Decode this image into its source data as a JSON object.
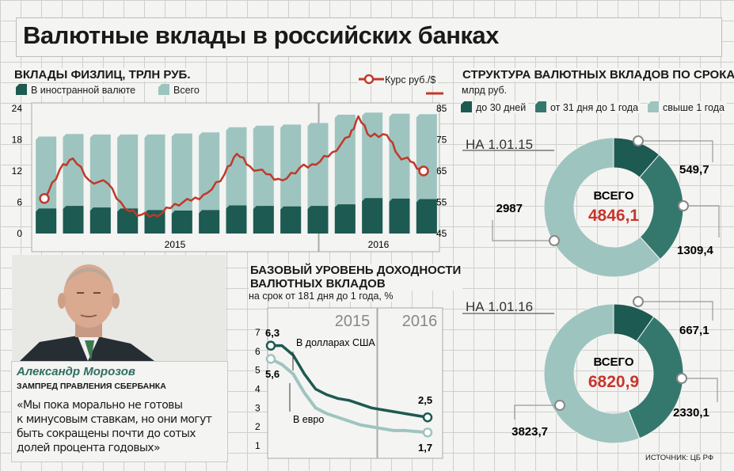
{
  "title": "Валютные вклады в российских банках",
  "colors": {
    "dark": "#1d5a51",
    "teal": "#34786d",
    "light": "#9ec4bf",
    "rate": "#c0392b",
    "accent": "#c8352c"
  },
  "deposits_chart": {
    "header": "ВКЛАДЫ ФИЗЛИЦ, ТРЛН РУБ.",
    "legend_foreign": "В иностранной валюте",
    "legend_total": "Всего",
    "legend_rate": "Курс руб./$",
    "year_2015": "2015",
    "year_2016": "2016",
    "left_ticks": [
      "0",
      "6",
      "12",
      "18",
      "24"
    ],
    "right_ticks": [
      "45",
      "55",
      "65",
      "75",
      "85"
    ]
  },
  "yield_chart": {
    "header_line1": "БАЗОВЫЙ УРОВЕНЬ ДОХОДНОСТИ",
    "header_line2": "ВАЛЮТНЫХ ВКЛАДОВ",
    "subheader": "на срок от 181 дня до 1 года, %",
    "year_2015": "2015",
    "year_2016": "2016",
    "ticks": [
      "1",
      "2",
      "3",
      "4",
      "5",
      "6",
      "7"
    ],
    "usd_label": "В долларах США",
    "eur_label": "В евро",
    "usd_start": "6,3",
    "usd_end": "2,5",
    "eur_start": "5,6",
    "eur_end": "1,7"
  },
  "structure": {
    "header": "СТРУКТУРА ВАЛЮТНЫХ ВКЛАДОВ ПО СРОКАМ",
    "unit": "млрд руб.",
    "legend": [
      "до 30 дней",
      "от 31 дня до 1 года",
      "свыше 1 года"
    ],
    "total_label": "ВСЕГО"
  },
  "person": {
    "name": "Александр Морозов",
    "position": "ЗАМПРЕД ПРАВЛЕНИЯ СБЕРБАНКА",
    "quote_lines": [
      "«Мы пока морально не готовы",
      "к минусовым ставкам, но они могут",
      "быть сокращены почти до сотых",
      "долей процента годовых»"
    ]
  },
  "source": "ИСТОЧНИК: ЦБ РФ",
  "chart_data": [
    {
      "type": "bar",
      "title": "ВКЛАДЫ ФИЗЛИЦ, ТРЛН РУБ.",
      "x": [
        "2015-01",
        "2015-02",
        "2015-03",
        "2015-04",
        "2015-05",
        "2015-06",
        "2015-07",
        "2015-08",
        "2015-09",
        "2015-10",
        "2015-11",
        "2015-12",
        "2016-01",
        "2016-02",
        "2016-03"
      ],
      "series": [
        {
          "name": "В иностранной валюте",
          "values": [
            4.8,
            5.3,
            5.0,
            4.8,
            4.5,
            4.4,
            4.5,
            5.4,
            5.3,
            5.2,
            5.3,
            5.6,
            6.8,
            6.7,
            6.6
          ]
        },
        {
          "name": "Всего",
          "values": [
            18.6,
            19.1,
            19.0,
            19.0,
            19.0,
            19.2,
            19.4,
            20.4,
            20.7,
            20.9,
            21.2,
            22.8,
            23.2,
            23.0,
            22.9
          ]
        }
      ],
      "ylim": [
        0,
        24
      ]
    },
    {
      "type": "line",
      "title": "Курс руб./$",
      "x": [
        "2015-01-01",
        "2015-01-20",
        "2015-02-05",
        "2015-02-25",
        "2015-03-20",
        "2015-04-10",
        "2015-04-30",
        "2015-05-20",
        "2015-06-10",
        "2015-06-30",
        "2015-07-20",
        "2015-08-10",
        "2015-08-25",
        "2015-09-10",
        "2015-09-30",
        "2015-10-20",
        "2015-11-10",
        "2015-11-30",
        "2015-12-20",
        "2016-01-10",
        "2016-01-21",
        "2016-02-05",
        "2016-02-25",
        "2016-03-10",
        "2016-03-25",
        "2016-04-10"
      ],
      "series": [
        {
          "name": "Курс руб./$",
          "values": [
            56.2,
            65.5,
            69.0,
            62.0,
            61.0,
            53.0,
            51.0,
            50.5,
            54.5,
            55.5,
            58.0,
            64.0,
            70.5,
            66.5,
            64.0,
            62.0,
            66.0,
            67.0,
            71.0,
            76.0,
            82.5,
            76.0,
            76.5,
            70.0,
            68.0,
            65.0
          ]
        }
      ],
      "ylim": [
        45,
        85
      ]
    },
    {
      "type": "line",
      "title": "БАЗОВЫЙ УРОВЕНЬ ДОХОДНОСТИ ВАЛЮТНЫХ ВКЛАДОВ",
      "x": [
        "2015-01",
        "2015-02",
        "2015-03",
        "2015-04",
        "2015-05",
        "2015-06",
        "2015-07",
        "2015-08",
        "2015-09",
        "2015-10",
        "2015-11",
        "2015-12",
        "2016-01",
        "2016-02",
        "2016-03"
      ],
      "series": [
        {
          "name": "В долларах США",
          "values": [
            6.3,
            6.3,
            5.8,
            4.8,
            4.0,
            3.7,
            3.5,
            3.4,
            3.2,
            3.0,
            2.9,
            2.8,
            2.7,
            2.6,
            2.5
          ]
        },
        {
          "name": "В евро",
          "values": [
            5.6,
            5.3,
            4.8,
            3.8,
            3.0,
            2.7,
            2.5,
            2.3,
            2.1,
            2.0,
            1.9,
            1.8,
            1.8,
            1.75,
            1.7
          ]
        }
      ],
      "ylim": [
        1,
        7
      ]
    },
    {
      "type": "pie",
      "title": "НА 1.01.15",
      "labels": [
        "до 30 дней",
        "от 31 дня до 1 года",
        "свыше 1 года"
      ],
      "values": [
        549.7,
        1309.4,
        2987
      ],
      "value_labels": [
        "549,7",
        "1309,4",
        "2987"
      ],
      "total": "4846,1"
    },
    {
      "type": "pie",
      "title": "НА 1.01.16",
      "labels": [
        "до 30 дней",
        "от 31 дня до 1 года",
        "свыше 1 года"
      ],
      "values": [
        667.1,
        2330.1,
        3823.7
      ],
      "value_labels": [
        "667,1",
        "2330,1",
        "3823,7"
      ],
      "total": "6820,9"
    }
  ]
}
